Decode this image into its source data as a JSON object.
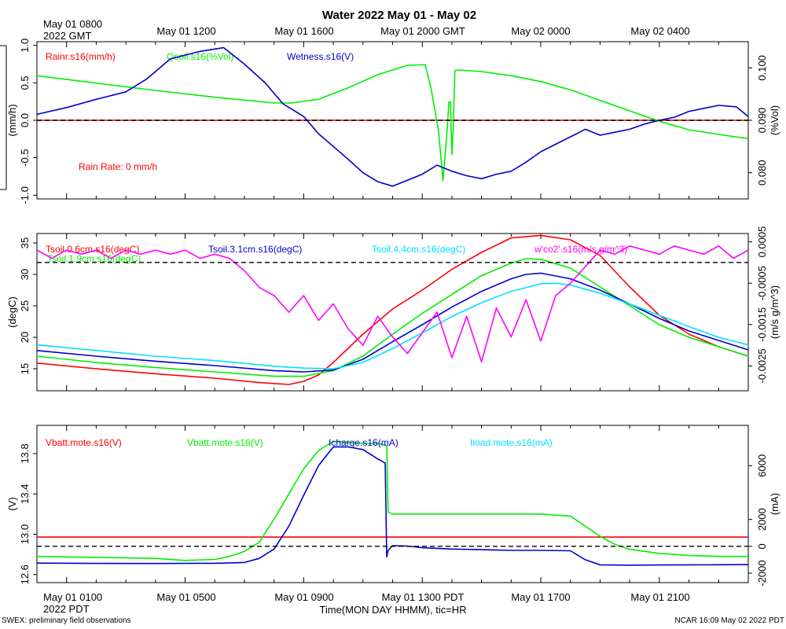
{
  "title": "Water 2022 May 01 - May 02",
  "top_axis_start": [
    "May 01 0800",
    "2022 GMT"
  ],
  "top_ticks": [
    "May 01 1200",
    "May 01 1600",
    "May 01 2000 GMT",
    "May 02 0000",
    "May 02 0400"
  ],
  "bottom_axis_start": [
    "May 01 0100",
    "2022 PDT"
  ],
  "bottom_ticks": [
    "May 01 0500",
    "May 01 0900",
    "May 01 1300 PDT",
    "May 01 1700",
    "May 01 2100"
  ],
  "xlabel": "Time(MON DAY HHMM), tic=HR",
  "footer_left": "SWEX: preliminary field observations",
  "footer_right": "NCAR 16:09 May 02 2022 PDT",
  "colors": {
    "red": "#ff0000",
    "green": "#00ee00",
    "blue": "#0000cc",
    "cyan": "#00e0ff",
    "magenta": "#ff00ff"
  },
  "chart_data": [
    {
      "type": "line",
      "x_unit": "hours since May 01 0000 PDT",
      "xlim": [
        0,
        24
      ],
      "left_axis": {
        "label": "(mm/h)",
        "ylim": [
          -1.05,
          1.05
        ],
        "ticks": [
          "1.0",
          "0.5",
          "0.0",
          "-0.5",
          "-1.0"
        ],
        "tick_values": [
          1.0,
          0.5,
          0.0,
          -0.5,
          -1.0
        ]
      },
      "right_axis": {
        "label": "(%Vol)",
        "ylim": [
          0.075,
          0.105
        ],
        "ticks": [
          "0.100",
          "0.090",
          "0.080"
        ],
        "tick_values": [
          0.1,
          0.09,
          0.08
        ]
      },
      "annotation": "Rain Rate: 0 mm/h",
      "reference_line": {
        "axis": "left",
        "value": 0
      },
      "series": [
        {
          "name": "Rainr.s16(mm/h)",
          "color": "#ff0000",
          "axis": "left",
          "x": [
            0,
            24
          ],
          "y": [
            0,
            0
          ]
        },
        {
          "name": "Qsoil.s16(%Vol)",
          "color": "#00ee00",
          "axis": "right",
          "x": [
            0,
            2,
            4,
            6,
            8,
            8.6,
            9.5,
            10.5,
            11.5,
            12.5,
            13.1,
            13.3,
            13.55,
            13.7,
            13.85,
            13.9,
            13.95,
            14.0,
            14.05,
            14.1,
            14.2,
            15,
            16,
            17,
            18,
            19,
            20,
            21,
            22,
            23,
            24
          ],
          "y": [
            0.0985,
            0.0971,
            0.0957,
            0.0944,
            0.0933,
            0.0933,
            0.094,
            0.0962,
            0.0987,
            0.1005,
            0.1006,
            0.096,
            0.088,
            0.0785,
            0.089,
            0.0935,
            0.0935,
            0.0835,
            0.089,
            0.0995,
            0.0996,
            0.0993,
            0.0985,
            0.0974,
            0.0958,
            0.0938,
            0.0918,
            0.0898,
            0.0882,
            0.0873,
            0.0865
          ]
        },
        {
          "name": "Wetness.s16(V)",
          "color": "#0000cc",
          "axis": "left",
          "x": [
            0,
            1,
            2,
            3,
            3.7,
            4.5,
            5.5,
            6.3,
            7,
            7.7,
            8.3,
            9,
            9.5,
            10,
            10.5,
            11,
            11.5,
            12,
            12.5,
            13,
            13.5,
            14,
            14.5,
            15,
            15.5,
            16,
            16.5,
            17,
            17.5,
            18,
            18.5,
            19,
            19.5,
            20,
            20.5,
            21,
            21.5,
            22,
            22.5,
            23,
            23.6,
            24
          ],
          "y": [
            0.08,
            0.17,
            0.28,
            0.38,
            0.55,
            0.82,
            0.92,
            0.97,
            0.75,
            0.5,
            0.22,
            0.05,
            -0.18,
            -0.35,
            -0.52,
            -0.7,
            -0.82,
            -0.88,
            -0.8,
            -0.72,
            -0.6,
            -0.68,
            -0.74,
            -0.78,
            -0.72,
            -0.68,
            -0.56,
            -0.42,
            -0.32,
            -0.22,
            -0.12,
            -0.2,
            -0.16,
            -0.12,
            -0.05,
            0.0,
            0.04,
            0.12,
            0.16,
            0.2,
            0.18,
            0.05
          ]
        }
      ]
    },
    {
      "type": "line",
      "x_unit": "hours since May 01 0000 PDT",
      "xlim": [
        0,
        24
      ],
      "left_axis": {
        "label": "(degC)",
        "ylim": [
          11.5,
          36.5
        ],
        "ticks": [
          "35",
          "30",
          "25",
          "20",
          "15"
        ],
        "tick_values": [
          35,
          30,
          25,
          20,
          15
        ]
      },
      "right_axis": {
        "label": "(m/s g/m^3)",
        "ylim": [
          -0.0031,
          0.0007
        ],
        "ticks": [
          "0.0005",
          "-0.0005",
          "-0.0015",
          "-0.0025"
        ],
        "tick_values": [
          0.0005,
          -0.0005,
          -0.0015,
          -0.0025
        ]
      },
      "reference_line": {
        "axis": "right",
        "value": 0
      },
      "series": [
        {
          "name": "Tsoil.0.6cm.s16(degC)",
          "color": "#ff0000",
          "axis": "left",
          "x": [
            0,
            2,
            4,
            6,
            7.5,
            8.5,
            9,
            9.5,
            10,
            11,
            12,
            13,
            14,
            15,
            16,
            17,
            18,
            19,
            20,
            21,
            22,
            23,
            24
          ],
          "y": [
            15.9,
            15.0,
            14.2,
            13.5,
            12.8,
            12.5,
            13.0,
            14.0,
            16.0,
            20.5,
            24.5,
            27.5,
            30.8,
            33.5,
            35.8,
            36.2,
            35.5,
            33,
            28,
            23.5,
            20.5,
            18.5,
            17.0
          ]
        },
        {
          "name": "Tsoil.1.9cm.s16(degC)",
          "color": "#00ee00",
          "axis": "left",
          "x": [
            0,
            2,
            4,
            6,
            8,
            9,
            10,
            11,
            12,
            13,
            14,
            15,
            16,
            16.5,
            17,
            18,
            19,
            20,
            21,
            22,
            23,
            24
          ],
          "y": [
            17.0,
            16.0,
            15.2,
            14.5,
            13.8,
            13.8,
            14.7,
            17.0,
            20.5,
            23.8,
            26.8,
            29.8,
            31.8,
            32.5,
            32.4,
            31.0,
            28.0,
            25.0,
            22.0,
            20.0,
            18.5,
            17.0
          ]
        },
        {
          "name": "Tsoil.3.1cm.s16(degC)",
          "color": "#0000cc",
          "axis": "left",
          "x": [
            0,
            2,
            4,
            6,
            8,
            9,
            10,
            11,
            12,
            13,
            14,
            15,
            16,
            16.5,
            17,
            18,
            19,
            20,
            21,
            22,
            23,
            24
          ],
          "y": [
            17.9,
            17.0,
            16.2,
            15.5,
            14.7,
            14.5,
            14.8,
            16.5,
            19.3,
            22.0,
            24.8,
            27.3,
            29.3,
            30.0,
            30.2,
            29.3,
            27.5,
            25.3,
            23.0,
            21.0,
            19.5,
            18.0
          ]
        },
        {
          "name": "Tsoil.4.4cm.s16(degC)",
          "color": "#00e0ff",
          "axis": "left",
          "x": [
            0,
            2,
            4,
            6,
            8,
            9,
            10,
            11,
            12,
            13,
            14,
            15,
            16,
            17,
            17.5,
            18,
            19,
            20,
            21,
            22,
            23,
            24
          ],
          "y": [
            18.8,
            17.9,
            17.0,
            16.3,
            15.4,
            15.1,
            15.0,
            16.0,
            18.2,
            20.7,
            23.3,
            25.5,
            27.3,
            28.5,
            28.6,
            28.3,
            27.0,
            25.3,
            23.5,
            21.7,
            20.0,
            18.8
          ]
        },
        {
          "name": "w'co2'.s16(m/s g/m^3)",
          "color": "#ff00ff",
          "axis": "right",
          "x": [
            0,
            0.5,
            1,
            1.5,
            2,
            2.5,
            3,
            3.5,
            4,
            4.5,
            5,
            5.5,
            6,
            6.5,
            7,
            7.5,
            8,
            8.5,
            9,
            9.5,
            10,
            10.5,
            11,
            11.5,
            12,
            12.5,
            13,
            13.5,
            14,
            14.5,
            15,
            15.5,
            16,
            16.5,
            17,
            17.5,
            18,
            18.5,
            19,
            19.5,
            20,
            20.5,
            21,
            21.5,
            22,
            22.5,
            23,
            23.5,
            24
          ],
          "y": [
            0.0003,
            0.0001,
            0.0003,
            0.0002,
            0.0003,
            0.0001,
            0.0003,
            0.0002,
            0.0003,
            0.0002,
            0.0003,
            0.0001,
            0.0002,
            0.0001,
            -0.0002,
            -0.0006,
            -0.0008,
            -0.0012,
            -0.0008,
            -0.0014,
            -0.001,
            -0.0016,
            -0.002,
            -0.0013,
            -0.0018,
            -0.0022,
            -0.0017,
            -0.0012,
            -0.0023,
            -0.0013,
            -0.0024,
            -0.0011,
            -0.0018,
            -0.0009,
            -0.0019,
            -0.0008,
            -0.0005,
            -0.0001,
            0.0003,
            0.0002,
            0.0004,
            0.0003,
            0.0002,
            0.0004,
            0.0003,
            0.0002,
            0.0004,
            0.0001,
            0.0003
          ]
        }
      ]
    },
    {
      "type": "line",
      "x_unit": "hours since May 01 0000 PDT",
      "xlim": [
        0,
        24
      ],
      "left_axis": {
        "label": "(V)",
        "ylim": [
          12.52,
          14.08
        ],
        "ticks": [
          "13.8",
          "13.4",
          "13.0",
          "12.6"
        ],
        "tick_values": [
          13.8,
          13.4,
          13.0,
          12.6
        ]
      },
      "right_axis": {
        "label": "(mA)",
        "ylim": [
          -2700,
          9000
        ],
        "ticks": [
          "6000",
          "2000",
          "0",
          "-2000"
        ],
        "tick_values": [
          6000,
          2000,
          0,
          -2000
        ]
      },
      "reference_line": {
        "axis": "right",
        "value": 0
      },
      "series": [
        {
          "name": "Vbatt.mote.s16(V)",
          "color": "#ff0000",
          "axis": "left",
          "x": [
            0,
            24
          ],
          "y": [
            12.972,
            12.972
          ]
        },
        {
          "name": "Vbatt.mote.s16(V)",
          "color": "#00ee00",
          "axis": "left",
          "x": [
            0,
            2,
            4,
            5,
            6,
            6.5,
            7,
            7.5,
            8,
            8.5,
            9,
            9.5,
            10,
            10.5,
            11,
            11.5,
            11.8,
            11.85,
            12,
            13,
            14,
            15,
            16,
            17,
            18,
            18.5,
            19,
            19.5,
            20,
            21,
            22,
            23,
            24
          ],
          "y": [
            12.78,
            12.77,
            12.76,
            12.74,
            12.75,
            12.78,
            12.83,
            12.92,
            13.15,
            13.4,
            13.65,
            13.83,
            13.92,
            13.91,
            13.9,
            13.9,
            13.88,
            13.22,
            13.2,
            13.2,
            13.2,
            13.2,
            13.2,
            13.2,
            13.18,
            13.08,
            12.98,
            12.9,
            12.85,
            12.81,
            12.79,
            12.78,
            12.78
          ]
        },
        {
          "name": "Icharge.s16(mA)",
          "color": "#0000cc",
          "axis": "right",
          "x": [
            0,
            2,
            4,
            6,
            7,
            7.5,
            8,
            8.5,
            9,
            9.5,
            10,
            10.5,
            11,
            11.5,
            11.75,
            11.8,
            11.85,
            12,
            12.5,
            13,
            14,
            15,
            16,
            17,
            18,
            18.5,
            19,
            20,
            21,
            22,
            23,
            24
          ],
          "y": [
            -1250,
            -1270,
            -1280,
            -1260,
            -1200,
            -900,
            -200,
            1500,
            3800,
            6000,
            7400,
            7400,
            7200,
            6500,
            6200,
            -800,
            -300,
            50,
            20,
            -100,
            -200,
            -250,
            -300,
            -300,
            -330,
            -1000,
            -1380,
            -1400,
            -1390,
            -1380,
            -1370,
            -1360
          ]
        },
        {
          "name": "Iload.mote.s16(mA)",
          "color": "#00e0ff",
          "axis": "right",
          "x": [],
          "y": []
        }
      ]
    }
  ]
}
